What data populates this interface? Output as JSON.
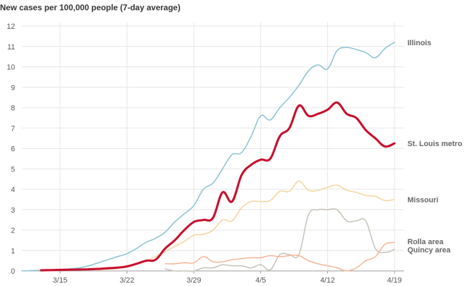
{
  "chart_data": {
    "type": "line",
    "title": "New cases per 100,000 people (7-day average)",
    "xlabel": "",
    "ylabel": "",
    "ylim": [
      0,
      12
    ],
    "yticks": [
      0,
      1,
      2,
      3,
      4,
      5,
      6,
      7,
      8,
      9,
      10,
      11,
      12
    ],
    "xlim": [
      10,
      50
    ],
    "xticks": [
      {
        "value": 14,
        "label": "3/15"
      },
      {
        "value": 21,
        "label": "3/22"
      },
      {
        "value": 28,
        "label": "3/29"
      },
      {
        "value": 35,
        "label": "4/5"
      },
      {
        "value": 42,
        "label": "4/12"
      },
      {
        "value": 49,
        "label": "4/19"
      }
    ],
    "grid": true,
    "series": [
      {
        "name": "Illinois",
        "color": "#8cc4d4",
        "width": 1.6,
        "x": [
          10,
          11,
          12,
          13,
          14,
          15,
          16,
          17,
          18,
          19,
          20,
          21,
          22,
          23,
          24,
          25,
          26,
          27,
          28,
          29,
          30,
          31,
          32,
          33,
          34,
          35,
          36,
          37,
          38,
          39,
          40,
          41,
          42,
          43,
          44,
          45,
          46,
          47,
          48,
          49
        ],
        "values": [
          0.0,
          0.02,
          0.03,
          0.05,
          0.07,
          0.1,
          0.15,
          0.25,
          0.4,
          0.55,
          0.7,
          0.85,
          1.1,
          1.4,
          1.6,
          1.9,
          2.4,
          2.8,
          3.2,
          4.0,
          4.3,
          5.0,
          5.7,
          5.8,
          6.6,
          7.6,
          7.4,
          8.0,
          8.5,
          9.1,
          9.8,
          10.1,
          9.9,
          10.8,
          10.95,
          10.85,
          10.7,
          10.45,
          10.9,
          11.2
        ]
      },
      {
        "name": "St. Louis metro",
        "color": "#c8102e",
        "width": 3.2,
        "x": [
          12,
          13,
          14,
          15,
          16,
          17,
          18,
          19,
          20,
          21,
          22,
          23,
          24,
          25,
          26,
          27,
          28,
          29,
          30,
          31,
          32,
          33,
          34,
          35,
          36,
          37,
          38,
          39,
          40,
          41,
          42,
          43,
          44,
          45,
          46,
          47,
          48,
          49
        ],
        "values": [
          0.03,
          0.04,
          0.05,
          0.06,
          0.07,
          0.08,
          0.1,
          0.13,
          0.16,
          0.22,
          0.35,
          0.5,
          0.55,
          1.1,
          1.5,
          2.0,
          2.4,
          2.5,
          2.6,
          3.85,
          3.4,
          4.7,
          5.2,
          5.45,
          5.5,
          6.6,
          7.0,
          8.1,
          7.6,
          7.7,
          7.9,
          8.25,
          7.7,
          7.5,
          6.9,
          6.5,
          6.1,
          6.25
        ]
      },
      {
        "name": "Missouri",
        "color": "#f5d6a1",
        "width": 1.6,
        "x": [
          18,
          19,
          20,
          21,
          22,
          23,
          24,
          25,
          26,
          27,
          28,
          29,
          30,
          31,
          32,
          33,
          34,
          35,
          36,
          37,
          38,
          39,
          40,
          41,
          42,
          43,
          44,
          45,
          46,
          47,
          48,
          49
        ],
        "values": [
          0.05,
          0.08,
          0.12,
          0.2,
          0.35,
          0.5,
          0.7,
          0.95,
          1.2,
          1.45,
          1.75,
          1.8,
          2.0,
          2.5,
          2.45,
          3.1,
          3.4,
          3.4,
          3.45,
          3.9,
          3.9,
          4.4,
          3.95,
          3.95,
          4.1,
          4.2,
          3.95,
          3.85,
          3.7,
          3.65,
          3.45,
          3.5
        ]
      },
      {
        "name": "Rolla area",
        "color": "#f5b79a",
        "width": 1.6,
        "x": [
          25,
          26,
          27,
          28,
          29,
          30,
          31,
          32,
          33,
          34,
          35,
          36,
          37,
          38,
          39,
          40,
          41,
          42,
          43,
          44,
          45,
          46,
          47,
          48,
          49
        ],
        "values": [
          0.35,
          0.35,
          0.4,
          0.4,
          0.7,
          0.45,
          0.45,
          0.55,
          0.6,
          0.65,
          0.65,
          0.75,
          0.7,
          0.75,
          0.75,
          0.5,
          0.35,
          0.25,
          0.15,
          0.0,
          0.15,
          0.5,
          0.7,
          1.3,
          1.4
        ]
      },
      {
        "name": "Quincy area",
        "color": "#c8c4ba",
        "width": 1.6,
        "x": [
          25,
          26,
          27,
          28,
          29,
          30,
          31,
          32,
          33,
          34,
          35,
          36,
          37,
          38,
          39,
          40,
          41,
          42,
          43,
          44,
          45,
          46,
          47,
          48,
          49
        ],
        "values": [
          0.1,
          0.0,
          0.0,
          0.0,
          0.15,
          0.15,
          0.3,
          0.25,
          0.25,
          0.15,
          0.3,
          0.05,
          0.8,
          0.8,
          0.8,
          2.75,
          3.0,
          3.0,
          3.0,
          2.45,
          2.45,
          2.45,
          1.1,
          0.9,
          1.05
        ]
      }
    ],
    "labels": [
      {
        "series": "Illinois",
        "text": "Illinois",
        "y": 11.2
      },
      {
        "series": "St. Louis metro",
        "text": "St. Louis metro",
        "y": 6.25
      },
      {
        "series": "Missouri",
        "text": "Missouri",
        "y": 3.5
      },
      {
        "series": "Rolla area",
        "text": "Rolla area",
        "y": 1.45
      },
      {
        "series": "Quincy area",
        "text": "Quincy area",
        "y": 1.05
      }
    ]
  }
}
